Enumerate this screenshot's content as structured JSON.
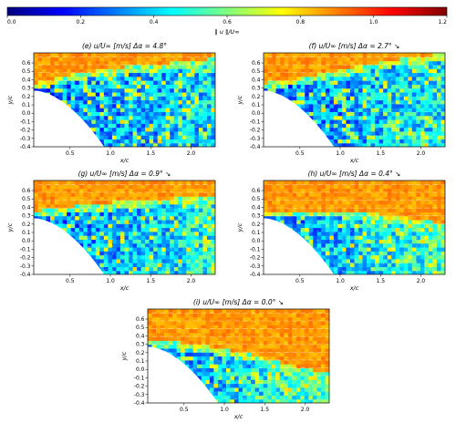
{
  "colorbar": {
    "label": "‖ u ‖/U∞",
    "ticks": [
      0.0,
      0.2,
      0.4,
      0.6,
      0.8,
      1.0,
      1.2
    ],
    "tick_labels": [
      "0.0",
      "0.2",
      "0.4",
      "0.6",
      "0.8",
      "1.0",
      "1.2"
    ],
    "range": [
      0.0,
      1.2
    ],
    "colormap": "jet",
    "colors": [
      "#00007f",
      "#0000ff",
      "#007fff",
      "#00ffff",
      "#7fff7f",
      "#ffff00",
      "#ff7f00",
      "#ff0000",
      "#7f0000"
    ]
  },
  "axis_labels": {
    "x": "x/c",
    "y": "y/c"
  },
  "chart_data": [
    {
      "type": "heatmap",
      "panel": "(e)",
      "title_units": "u/U∞   [m/s]",
      "delta": "Δα = 4.8°",
      "arrow": "",
      "xlabel": "x/c",
      "ylabel": "y/c",
      "xlim": [
        0.05,
        2.3
      ],
      "ylim": [
        -0.4,
        0.72
      ],
      "xticks": [
        0.5,
        1.0,
        1.5,
        2.0
      ],
      "xtick_labels": [
        "0.5",
        "1.0",
        "1.5",
        "2.0"
      ],
      "yticks": [
        -0.4,
        -0.3,
        -0.2,
        -0.1,
        0.0,
        0.1,
        0.2,
        0.3,
        0.4,
        0.5,
        0.6
      ],
      "ytick_labels": [
        "-0.4",
        "-0.3",
        "-0.2",
        "-0.1",
        "0.0",
        "0.1",
        "0.2",
        "0.3",
        "0.4",
        "0.5",
        "0.6"
      ],
      "wake": {
        "upper_edge_y": [
          0.3,
          0.42,
          0.5,
          0.55,
          0.6
        ],
        "edge_x": [
          0.05,
          0.6,
          1.2,
          1.8,
          2.3
        ],
        "separated_fraction": 0.85
      }
    },
    {
      "type": "heatmap",
      "panel": "(f)",
      "title_units": "u/U∞   [m/s]",
      "delta": "Δα = 2.7°",
      "arrow": "↘",
      "xlabel": "x/c",
      "ylabel": "y/c",
      "xlim": [
        0.05,
        2.3
      ],
      "ylim": [
        -0.4,
        0.72
      ],
      "xticks": [
        0.5,
        1.0,
        1.5,
        2.0
      ],
      "xtick_labels": [
        "0.5",
        "1.0",
        "1.5",
        "2.0"
      ],
      "yticks": [
        -0.4,
        -0.3,
        -0.2,
        -0.1,
        0.0,
        0.1,
        0.2,
        0.3,
        0.4,
        0.5,
        0.6
      ],
      "ytick_labels": [
        "-0.4",
        "-0.3",
        "-0.2",
        "-0.1",
        "0.0",
        "0.1",
        "0.2",
        "0.3",
        "0.4",
        "0.5",
        "0.6"
      ],
      "wake": {
        "upper_edge_y": [
          0.3,
          0.38,
          0.5,
          0.6,
          0.65
        ],
        "edge_x": [
          0.05,
          0.6,
          1.2,
          1.8,
          2.3
        ],
        "separated_fraction": 0.75
      }
    },
    {
      "type": "heatmap",
      "panel": "(g)",
      "title_units": "u/U∞   [m/s]",
      "delta": "Δα = 0.9°",
      "arrow": "↘",
      "xlabel": "x/c",
      "ylabel": "y/c",
      "xlim": [
        0.05,
        2.3
      ],
      "ylim": [
        -0.4,
        0.72
      ],
      "xticks": [
        0.5,
        1.0,
        1.5,
        2.0
      ],
      "xtick_labels": [
        "0.5",
        "1.0",
        "1.5",
        "2.0"
      ],
      "yticks": [
        -0.4,
        -0.3,
        -0.2,
        -0.1,
        0.0,
        0.1,
        0.2,
        0.3,
        0.4,
        0.5,
        0.6
      ],
      "ytick_labels": [
        "-0.4",
        "-0.3",
        "-0.2",
        "-0.1",
        "0.0",
        "0.1",
        "0.2",
        "0.3",
        "0.4",
        "0.5",
        "0.6"
      ],
      "wake": {
        "upper_edge_y": [
          0.3,
          0.36,
          0.42,
          0.45,
          0.45
        ],
        "edge_x": [
          0.05,
          0.6,
          1.2,
          1.8,
          2.3
        ],
        "separated_fraction": 0.7
      }
    },
    {
      "type": "heatmap",
      "panel": "(h)",
      "title_units": "u/U∞   [m/s]",
      "delta": "Δα = 0.4°",
      "arrow": "↘",
      "xlabel": "x/c",
      "ylabel": "y/c",
      "xlim": [
        0.05,
        2.3
      ],
      "ylim": [
        -0.4,
        0.72
      ],
      "xticks": [
        0.5,
        1.0,
        1.5,
        2.0
      ],
      "xtick_labels": [
        "0.5",
        "1.0",
        "1.5",
        "2.0"
      ],
      "yticks": [
        -0.4,
        -0.3,
        -0.2,
        -0.1,
        0.0,
        0.1,
        0.2,
        0.3,
        0.4,
        0.5,
        0.6
      ],
      "ytick_labels": [
        "-0.4",
        "-0.3",
        "-0.2",
        "-0.1",
        "0.0",
        "0.1",
        "0.2",
        "0.3",
        "0.4",
        "0.5",
        "0.6"
      ],
      "wake": {
        "upper_edge_y": [
          0.3,
          0.3,
          0.3,
          0.22,
          0.15
        ],
        "edge_x": [
          0.05,
          0.6,
          1.2,
          1.8,
          2.3
        ],
        "separated_fraction": 0.55
      }
    },
    {
      "type": "heatmap",
      "panel": "(i)",
      "title_units": "u/U∞   [m/s]",
      "delta": "Δα = 0.0°",
      "arrow": "↘",
      "xlabel": "x/c",
      "ylabel": "y/c",
      "xlim": [
        0.05,
        2.3
      ],
      "ylim": [
        -0.4,
        0.72
      ],
      "xticks": [
        0.5,
        1.0,
        1.5,
        2.0
      ],
      "xtick_labels": [
        "0.5",
        "1.0",
        "1.5",
        "2.0"
      ],
      "yticks": [
        -0.4,
        -0.3,
        -0.2,
        -0.1,
        0.0,
        0.1,
        0.2,
        0.3,
        0.4,
        0.5,
        0.6
      ],
      "ytick_labels": [
        "-0.4",
        "-0.3",
        "-0.2",
        "-0.1",
        "0.0",
        "0.1",
        "0.2",
        "0.3",
        "0.4",
        "0.5",
        "0.6"
      ],
      "wake": {
        "upper_edge_y": [
          0.3,
          0.25,
          0.15,
          0.0,
          -0.1
        ],
        "edge_x": [
          0.05,
          0.6,
          1.2,
          1.8,
          2.3
        ],
        "separated_fraction": 0.45
      }
    }
  ]
}
